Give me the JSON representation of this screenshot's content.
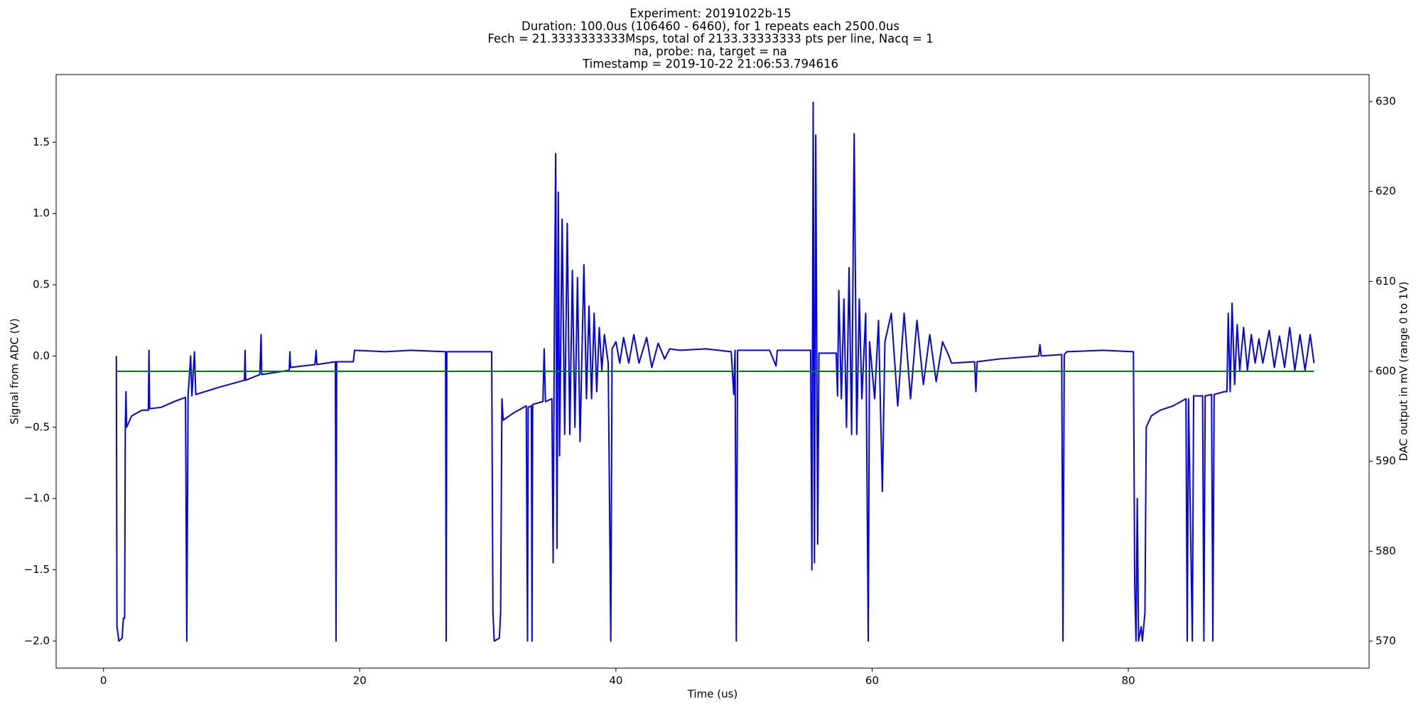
{
  "chart_data": {
    "type": "line",
    "title": [
      "Experiment: 20191022b-15",
      "Duration: 100.0us (106460 - 6460), for 1 repeats each 2500.0us",
      "Fech = 21.3333333333Msps, total of 2133.33333333 pts per line, Nacq = 1",
      "na, probe: na, target = na",
      "Timestamp = 2019-10-22 21:06:53.794616"
    ],
    "xlabel": "Time (us)",
    "ylabel": "Signal from ADC (V)",
    "y2label": "DAC output in mV (range 0 to 1V)",
    "xlim": [
      -3.7,
      98.8
    ],
    "xticks": [
      0,
      20,
      40,
      60,
      80
    ],
    "ylim": [
      -2.19,
      1.975
    ],
    "yticks": [
      {
        "value": -2.0,
        "label": "−2.0"
      },
      {
        "value": -1.5,
        "label": "−1.5"
      },
      {
        "value": -1.0,
        "label": "−1.0"
      },
      {
        "value": -0.5,
        "label": "−0.5"
      },
      {
        "value": 0.0,
        "label": "0.0"
      },
      {
        "value": 0.5,
        "label": "0.5"
      },
      {
        "value": 1.0,
        "label": "1.0"
      },
      {
        "value": 1.5,
        "label": "1.5"
      }
    ],
    "y2lim": [
      567,
      633
    ],
    "y2ticks": [
      570,
      580,
      590,
      600,
      610,
      620,
      630
    ],
    "ylabel_color": "#0000ff",
    "y2label_color": "#008000",
    "grid": false,
    "series": [
      {
        "color": "#0000ff",
        "axis": "y",
        "x": [
          1.0,
          1.05,
          1.2,
          1.45,
          1.55,
          1.65,
          1.7,
          1.75,
          1.8,
          2.2,
          2.6,
          3.0,
          3.5,
          3.55,
          3.6,
          4.5,
          5.5,
          6.4,
          6.5,
          6.6,
          6.8,
          6.9,
          7.1,
          7.2,
          9,
          11,
          11.05,
          11.1,
          12.2,
          12.3,
          12.35,
          14.5,
          14.55,
          14.6,
          16.5,
          16.6,
          16.65,
          18.1,
          18.15,
          18.2,
          19.5,
          19.6,
          22,
          24,
          26.7,
          26.75,
          26.8,
          30.3,
          30.4,
          30.5,
          30.9,
          31.0,
          31.1,
          31.2,
          32,
          33,
          33.1,
          33.15,
          33.4,
          33.45,
          33.5,
          34.3,
          34.4,
          34.5,
          35.0,
          35.1,
          35.2,
          35.3,
          35.4,
          35.5,
          35.6,
          35.8,
          36.0,
          36.2,
          36.4,
          36.6,
          36.8,
          37.0,
          37.2,
          37.5,
          37.7,
          37.9,
          38.1,
          38.3,
          38.5,
          38.7,
          38.9,
          39.1,
          39.4,
          39.6,
          39.7,
          40,
          40.3,
          40.6,
          41,
          41.4,
          41.8,
          42.4,
          42.8,
          43.3,
          43.8,
          44.2,
          45,
          47,
          49,
          49.2,
          49.3,
          49.4,
          49.5,
          52,
          52.5,
          52.6,
          55.2,
          55.3,
          55.4,
          55.5,
          55.6,
          55.75,
          55.85,
          57.2,
          57.3,
          57.4,
          57.6,
          57.8,
          58.0,
          58.2,
          58.4,
          58.6,
          58.8,
          59.0,
          59.2,
          59.5,
          59.7,
          59.8,
          60.2,
          60.5,
          60.8,
          61.0,
          61.5,
          62,
          62.5,
          63,
          63.5,
          64,
          64.5,
          65,
          65.5,
          66,
          66.2,
          68,
          68.1,
          68.2,
          70,
          73,
          73.1,
          73.2,
          74.8,
          74.9,
          75.0,
          75.2,
          78,
          80.4,
          80.5,
          80.6,
          80.7,
          80.8,
          81.0,
          81.1,
          81.3,
          81.4,
          81.8,
          82.5,
          83.5,
          84.5,
          84.6,
          84.7,
          85.0,
          85.1,
          85.8,
          85.9,
          86.0,
          86.5,
          86.6,
          86.7,
          87.5,
          87.7,
          87.8,
          87.95,
          88.1,
          88.3,
          88.5,
          88.7,
          89,
          89.3,
          89.6,
          89.9,
          90.2,
          90.5,
          91,
          91.4,
          91.8,
          92.2,
          92.6,
          93.0,
          93.4,
          93.8,
          94.2,
          94.5
        ],
        "values": [
          0.0,
          -1.9,
          -2.0,
          -1.98,
          -1.84,
          -1.84,
          -0.5,
          -0.25,
          -0.5,
          -0.42,
          -0.4,
          -0.38,
          -0.38,
          0.04,
          -0.37,
          -0.36,
          -0.32,
          -0.29,
          -2.0,
          -0.28,
          0.0,
          -0.28,
          0.03,
          -0.27,
          -0.22,
          -0.17,
          0.04,
          -0.17,
          -0.13,
          0.15,
          -0.13,
          -0.1,
          0.03,
          -0.08,
          -0.06,
          0.04,
          -0.06,
          -0.04,
          -2.0,
          -0.04,
          -0.04,
          0.04,
          0.03,
          0.04,
          0.03,
          -2.0,
          0.03,
          0.03,
          -1.8,
          -2.0,
          -1.98,
          -1.8,
          -0.3,
          -0.45,
          -0.4,
          -0.35,
          -2.0,
          -0.36,
          -0.35,
          -2.0,
          -0.34,
          -0.32,
          0.05,
          -0.32,
          -0.3,
          -1.45,
          0.3,
          1.42,
          -1.35,
          1.15,
          -0.7,
          0.96,
          -0.55,
          0.93,
          -0.55,
          0.6,
          -0.5,
          0.55,
          -0.6,
          0.64,
          -0.3,
          0.35,
          -0.3,
          0.3,
          -0.25,
          0.2,
          -0.1,
          0.15,
          -0.05,
          -2.0,
          0.05,
          0.1,
          -0.05,
          0.13,
          -0.05,
          0.15,
          -0.05,
          0.13,
          -0.08,
          0.09,
          -0.02,
          0.05,
          0.04,
          0.05,
          0.03,
          -0.27,
          0.04,
          -2.0,
          0.04,
          0.04,
          -0.07,
          0.04,
          0.04,
          -1.5,
          1.78,
          -1.45,
          1.55,
          -1.32,
          0.02,
          0.02,
          -0.28,
          0.46,
          -0.3,
          0.4,
          -0.5,
          0.62,
          -0.55,
          1.56,
          -0.55,
          0.4,
          -0.3,
          0.3,
          -2.0,
          0.1,
          -0.3,
          0.25,
          -0.95,
          0.1,
          0.3,
          -0.35,
          0.3,
          -0.3,
          0.25,
          -0.2,
          0.15,
          -0.18,
          0.1,
          0.0,
          -0.05,
          -0.04,
          -0.25,
          -0.04,
          -0.02,
          0.0,
          0.08,
          0.0,
          0.01,
          -2.0,
          0.01,
          0.03,
          0.04,
          0.03,
          -1.6,
          -2.0,
          -1.0,
          -2.0,
          -1.9,
          -2.0,
          -1.8,
          -0.5,
          -0.42,
          -0.38,
          -0.35,
          -0.3,
          -2.0,
          -0.3,
          -2.0,
          -0.28,
          -0.28,
          -2.0,
          -0.28,
          -0.27,
          -2.0,
          -0.27,
          -0.25,
          -0.25,
          0.3,
          -0.25,
          0.37,
          -0.2,
          0.22,
          -0.1,
          0.2,
          -0.1,
          0.15,
          -0.05,
          0.12,
          -0.05,
          0.18,
          -0.08,
          0.14,
          -0.08,
          0.2,
          -0.1,
          0.15,
          -0.1,
          0.15,
          -0.05
        ]
      },
      {
        "color": "#008000",
        "axis": "y2",
        "x": [
          1.0,
          94.5
        ],
        "values": [
          600,
          600
        ]
      }
    ]
  }
}
